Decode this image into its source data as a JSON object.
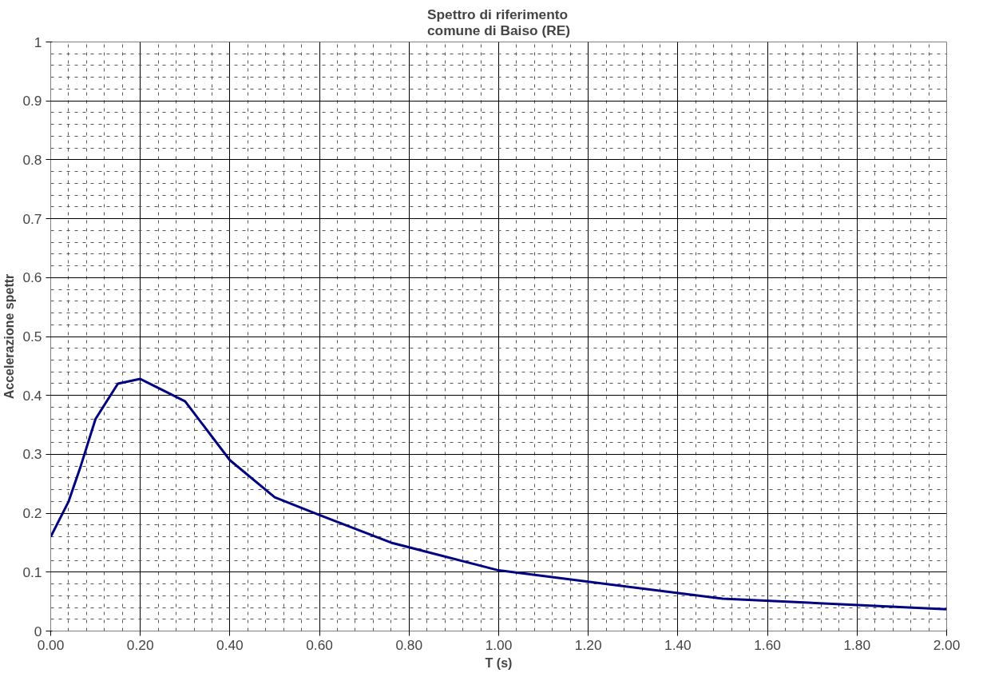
{
  "chart_data": {
    "type": "line",
    "title": "Spettro di riferimento\ncomune di Baiso (RE)",
    "xlabel": "T (s)",
    "ylabel": "Accelerazione spettr",
    "x": [
      0,
      0.04,
      0.067,
      0.1,
      0.15,
      0.2,
      0.3,
      0.4,
      0.5,
      0.6,
      0.76,
      1.0,
      1.5,
      2.0
    ],
    "series": [
      {
        "color": "#000080",
        "values": [
          0.16,
          0.22,
          0.28,
          0.36,
          0.42,
          0.428,
          0.39,
          0.29,
          0.227,
          0.197,
          0.15,
          0.103,
          0.055,
          0.037
        ]
      }
    ],
    "xlim": [
      0,
      2
    ],
    "ylim": [
      0,
      1
    ],
    "xticks": [
      {
        "value": 0,
        "label": "0.00"
      },
      {
        "value": 0.2,
        "label": "0.20"
      },
      {
        "value": 0.4,
        "label": "0.40"
      },
      {
        "value": 0.6,
        "label": "0.60"
      },
      {
        "value": 0.8,
        "label": "0.80"
      },
      {
        "value": 1,
        "label": "1.00"
      },
      {
        "value": 1.2,
        "label": "1.20"
      },
      {
        "value": 1.4,
        "label": "1.40"
      },
      {
        "value": 1.6,
        "label": "1.60"
      },
      {
        "value": 1.8,
        "label": "1.80"
      },
      {
        "value": 2,
        "label": "2.00"
      }
    ],
    "yticks": [
      0,
      0.1,
      0.2,
      0.3,
      0.4,
      0.5,
      0.6,
      0.7,
      0.8,
      0.9,
      1
    ],
    "grid": true,
    "marker": "none",
    "line_style": "solid"
  }
}
